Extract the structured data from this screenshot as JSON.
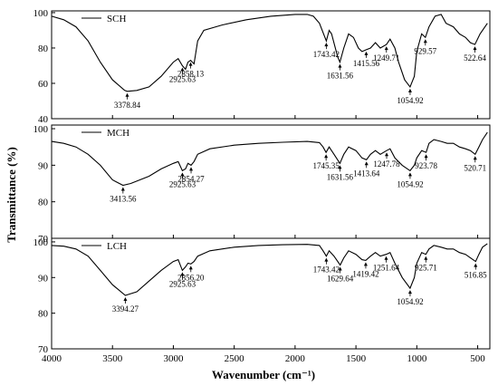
{
  "chart_data": {
    "type": "line",
    "xlabel": "Wavenumber (cm⁻¹)",
    "ylabel": "Transmittance (%)",
    "x_ticks": [
      4000,
      3500,
      3000,
      2500,
      2000,
      1500,
      1000,
      500
    ],
    "xlim": [
      4000,
      400
    ],
    "panels": [
      {
        "name": "SCH",
        "ylim": [
          40,
          101
        ],
        "y_ticks": [
          40,
          60,
          80,
          100
        ],
        "curve": [
          [
            4000,
            98
          ],
          [
            3900,
            96
          ],
          [
            3800,
            92
          ],
          [
            3700,
            84
          ],
          [
            3600,
            72
          ],
          [
            3500,
            62
          ],
          [
            3400,
            56
          ],
          [
            3378.84,
            55.5
          ],
          [
            3300,
            56
          ],
          [
            3200,
            58
          ],
          [
            3100,
            64
          ],
          [
            3000,
            72
          ],
          [
            2960,
            74
          ],
          [
            2925.63,
            70
          ],
          [
            2900,
            68
          ],
          [
            2880,
            72
          ],
          [
            2858.13,
            73
          ],
          [
            2830,
            71
          ],
          [
            2800,
            84
          ],
          [
            2750,
            90
          ],
          [
            2600,
            93
          ],
          [
            2400,
            96
          ],
          [
            2200,
            98
          ],
          [
            2000,
            99
          ],
          [
            1900,
            99
          ],
          [
            1850,
            98
          ],
          [
            1800,
            94
          ],
          [
            1743.42,
            84
          ],
          [
            1720,
            90
          ],
          [
            1700,
            88
          ],
          [
            1650,
            75
          ],
          [
            1631.56,
            72
          ],
          [
            1600,
            80
          ],
          [
            1560,
            88
          ],
          [
            1520,
            86
          ],
          [
            1480,
            80
          ],
          [
            1450,
            78
          ],
          [
            1415.56,
            79
          ],
          [
            1380,
            80
          ],
          [
            1340,
            83
          ],
          [
            1300,
            80
          ],
          [
            1249.71,
            82
          ],
          [
            1220,
            85
          ],
          [
            1180,
            80
          ],
          [
            1150,
            72
          ],
          [
            1100,
            62
          ],
          [
            1054.92,
            58
          ],
          [
            1020,
            64
          ],
          [
            1000,
            78
          ],
          [
            960,
            88
          ],
          [
            929.57,
            86
          ],
          [
            900,
            92
          ],
          [
            850,
            98
          ],
          [
            800,
            99
          ],
          [
            760,
            94
          ],
          [
            700,
            92
          ],
          [
            650,
            88
          ],
          [
            600,
            86
          ],
          [
            560,
            83
          ],
          [
            522.64,
            82
          ],
          [
            480,
            88
          ],
          [
            420,
            94
          ]
        ],
        "peaks": [
          {
            "x": 3378.84,
            "label": "3378.84"
          },
          {
            "x": 2925.63,
            "label": "2925.63"
          },
          {
            "x": 2858.13,
            "label": "2858.13"
          },
          {
            "x": 1743.42,
            "label": "1743.42"
          },
          {
            "x": 1631.56,
            "label": "1631.56"
          },
          {
            "x": 1415.56,
            "label": "1415.56"
          },
          {
            "x": 1249.71,
            "label": "1249.71"
          },
          {
            "x": 1054.92,
            "label": "1054.92"
          },
          {
            "x": 929.57,
            "label": "929.57"
          },
          {
            "x": 522.64,
            "label": "522.64"
          }
        ]
      },
      {
        "name": "MCH",
        "ylim": [
          70,
          101
        ],
        "y_ticks": [
          70,
          80,
          90,
          100
        ],
        "curve": [
          [
            4000,
            96.5
          ],
          [
            3900,
            96
          ],
          [
            3800,
            95
          ],
          [
            3700,
            93
          ],
          [
            3600,
            90
          ],
          [
            3500,
            86
          ],
          [
            3413.56,
            84.5
          ],
          [
            3350,
            85
          ],
          [
            3200,
            87
          ],
          [
            3100,
            89
          ],
          [
            3000,
            90.5
          ],
          [
            2960,
            91
          ],
          [
            2925.63,
            88.5
          ],
          [
            2900,
            89
          ],
          [
            2880,
            90.5
          ],
          [
            2854.27,
            90
          ],
          [
            2830,
            91
          ],
          [
            2800,
            93
          ],
          [
            2700,
            94.5
          ],
          [
            2500,
            95.5
          ],
          [
            2300,
            96
          ],
          [
            2100,
            96.3
          ],
          [
            1900,
            96.5
          ],
          [
            1800,
            96.2
          ],
          [
            1770,
            95
          ],
          [
            1745.35,
            93.5
          ],
          [
            1720,
            95
          ],
          [
            1680,
            93
          ],
          [
            1631.56,
            90.5
          ],
          [
            1600,
            93
          ],
          [
            1560,
            95
          ],
          [
            1500,
            94
          ],
          [
            1450,
            92
          ],
          [
            1413.64,
            91.5
          ],
          [
            1380,
            93
          ],
          [
            1340,
            94
          ],
          [
            1300,
            93
          ],
          [
            1247.78,
            94
          ],
          [
            1220,
            94.5
          ],
          [
            1180,
            92
          ],
          [
            1120,
            90
          ],
          [
            1054.92,
            88.5
          ],
          [
            1020,
            90
          ],
          [
            1000,
            92
          ],
          [
            960,
            94
          ],
          [
            923.78,
            93.5
          ],
          [
            900,
            96
          ],
          [
            860,
            97
          ],
          [
            800,
            96.5
          ],
          [
            750,
            96
          ],
          [
            700,
            96
          ],
          [
            650,
            95
          ],
          [
            600,
            94.5
          ],
          [
            560,
            94
          ],
          [
            520.71,
            93
          ],
          [
            490,
            95
          ],
          [
            460,
            97
          ],
          [
            420,
            99
          ]
        ],
        "peaks": [
          {
            "x": 3413.56,
            "label": "3413.56"
          },
          {
            "x": 2925.63,
            "label": "2925.63"
          },
          {
            "x": 2854.27,
            "label": "2854.27"
          },
          {
            "x": 1745.35,
            "label": "1745.35"
          },
          {
            "x": 1631.56,
            "label": "1631.56"
          },
          {
            "x": 1413.64,
            "label": "1413.64"
          },
          {
            "x": 1247.78,
            "label": "1247.78"
          },
          {
            "x": 1054.92,
            "label": "1054.92"
          },
          {
            "x": 923.78,
            "label": "923.78"
          },
          {
            "x": 520.71,
            "label": "520.71"
          }
        ]
      },
      {
        "name": "LCH",
        "ylim": [
          70,
          101
        ],
        "y_ticks": [
          70,
          80,
          90,
          100
        ],
        "curve": [
          [
            4000,
            99
          ],
          [
            3900,
            98.8
          ],
          [
            3800,
            98
          ],
          [
            3700,
            96
          ],
          [
            3600,
            92
          ],
          [
            3500,
            88
          ],
          [
            3394.27,
            85
          ],
          [
            3300,
            86
          ],
          [
            3200,
            89
          ],
          [
            3100,
            92
          ],
          [
            3000,
            94.5
          ],
          [
            2960,
            95
          ],
          [
            2925.63,
            92
          ],
          [
            2900,
            93
          ],
          [
            2880,
            94
          ],
          [
            2856.2,
            93.8
          ],
          [
            2830,
            94.5
          ],
          [
            2800,
            96
          ],
          [
            2700,
            97.5
          ],
          [
            2500,
            98.5
          ],
          [
            2300,
            99
          ],
          [
            2100,
            99.2
          ],
          [
            1900,
            99.3
          ],
          [
            1800,
            99
          ],
          [
            1770,
            97.5
          ],
          [
            1743.42,
            96
          ],
          [
            1720,
            97.5
          ],
          [
            1680,
            96
          ],
          [
            1629.64,
            93.5
          ],
          [
            1600,
            95.5
          ],
          [
            1560,
            97.5
          ],
          [
            1500,
            96.5
          ],
          [
            1450,
            95
          ],
          [
            1419.42,
            94.8
          ],
          [
            1380,
            96
          ],
          [
            1340,
            97
          ],
          [
            1300,
            96
          ],
          [
            1251.64,
            96.5
          ],
          [
            1220,
            97
          ],
          [
            1180,
            94
          ],
          [
            1120,
            90
          ],
          [
            1054.92,
            87
          ],
          [
            1020,
            90
          ],
          [
            1000,
            94
          ],
          [
            960,
            97
          ],
          [
            925.71,
            96.5
          ],
          [
            900,
            98
          ],
          [
            860,
            99
          ],
          [
            800,
            98.5
          ],
          [
            750,
            98
          ],
          [
            700,
            98
          ],
          [
            650,
            97
          ],
          [
            600,
            96.5
          ],
          [
            560,
            95.5
          ],
          [
            516.85,
            94.5
          ],
          [
            490,
            96.5
          ],
          [
            460,
            98.5
          ],
          [
            420,
            99.5
          ]
        ],
        "peaks": [
          {
            "x": 3394.27,
            "label": "3394.27"
          },
          {
            "x": 2925.63,
            "label": "2925.63"
          },
          {
            "x": 2856.2,
            "label": "2856.20"
          },
          {
            "x": 1743.42,
            "label": "1743.42"
          },
          {
            "x": 1629.64,
            "label": "1629.64"
          },
          {
            "x": 1419.42,
            "label": "1419.42"
          },
          {
            "x": 1251.64,
            "label": "1251.64"
          },
          {
            "x": 1054.92,
            "label": "1054.92"
          },
          {
            "x": 925.71,
            "label": "925.71"
          },
          {
            "x": 516.85,
            "label": "516.85"
          }
        ]
      }
    ]
  }
}
